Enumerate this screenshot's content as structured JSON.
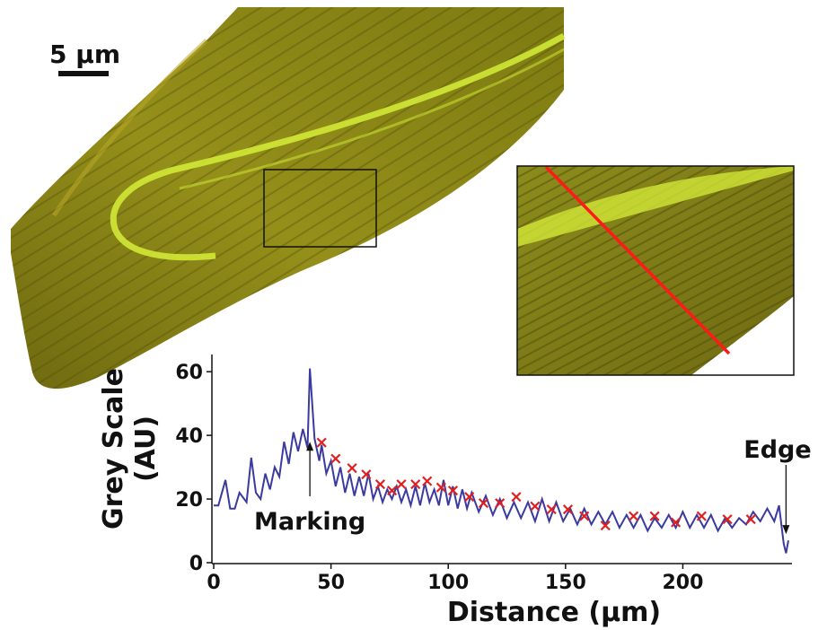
{
  "scale_bar": {
    "label": "5 µm"
  },
  "colors": {
    "line": "#3a3aa0",
    "marker": "#e02020",
    "profile_line": "#ff1a1a",
    "otolith_base": "#8a8416",
    "otolith_bright": "#d8f03a"
  },
  "chart_data": {
    "type": "line",
    "xlabel": "Distance (µm)",
    "ylabel_line1": "Grey Scale",
    "ylabel_line2": "(AU)",
    "xlim": [
      0,
      245
    ],
    "ylim": [
      0,
      64
    ],
    "xticks": [
      0,
      50,
      100,
      150,
      200
    ],
    "yticks": [
      0,
      20,
      40,
      60
    ],
    "annotations": {
      "marking": "Marking",
      "edge": "Edge"
    },
    "annotation_points": {
      "marking": [
        41,
        38
      ],
      "edge": [
        244,
        9
      ]
    },
    "x": [
      0,
      2,
      5,
      7,
      9,
      11,
      14,
      16,
      18,
      20,
      22,
      24,
      26,
      28,
      30,
      32,
      34,
      36,
      38,
      40,
      41,
      43,
      45,
      46,
      48,
      50,
      52,
      54,
      56,
      58,
      60,
      62,
      64,
      66,
      68,
      70,
      72,
      74,
      76,
      78,
      80,
      82,
      84,
      86,
      88,
      90,
      92,
      94,
      96,
      98,
      100,
      102,
      104,
      106,
      108,
      110,
      113,
      116,
      119,
      122,
      125,
      128,
      131,
      134,
      137,
      140,
      143,
      146,
      149,
      152,
      155,
      158,
      161,
      164,
      167,
      170,
      173,
      176,
      179,
      182,
      185,
      188,
      191,
      194,
      197,
      200,
      203,
      206,
      209,
      212,
      215,
      218,
      221,
      224,
      227,
      230,
      233,
      236,
      239,
      241,
      242,
      243,
      244,
      245
    ],
    "y": [
      18,
      18,
      26,
      17,
      17,
      22,
      19,
      33,
      22,
      20,
      28,
      23,
      30,
      27,
      38,
      31,
      41,
      35,
      42,
      36,
      61,
      39,
      32,
      37,
      28,
      32,
      24,
      30,
      22,
      28,
      21,
      27,
      21,
      28,
      20,
      24,
      19,
      23,
      20,
      24,
      19,
      23,
      18,
      24,
      18,
      25,
      19,
      23,
      18,
      26,
      18,
      24,
      17,
      23,
      17,
      22,
      16,
      21,
      15,
      20,
      14,
      19,
      14,
      19,
      13,
      20,
      13,
      19,
      13,
      17,
      12,
      17,
      12,
      16,
      12,
      16,
      11,
      15,
      11,
      15,
      10,
      14,
      11,
      15,
      11,
      16,
      11,
      15,
      11,
      15,
      10,
      14,
      11,
      14,
      12,
      16,
      13,
      17,
      13,
      18,
      12,
      6,
      3,
      7
    ],
    "markers": {
      "x": [
        46,
        52,
        59,
        65,
        71,
        76,
        80,
        86,
        91,
        97,
        102,
        109,
        115,
        122,
        129,
        137,
        144,
        151,
        158,
        167,
        179,
        188,
        197,
        208,
        219,
        229
      ],
      "y": [
        38,
        33,
        30,
        28,
        25,
        23,
        25,
        25,
        26,
        24,
        23,
        21,
        19,
        19,
        21,
        18,
        17,
        17,
        15,
        12,
        15,
        15,
        13,
        15,
        14,
        14
      ]
    }
  }
}
